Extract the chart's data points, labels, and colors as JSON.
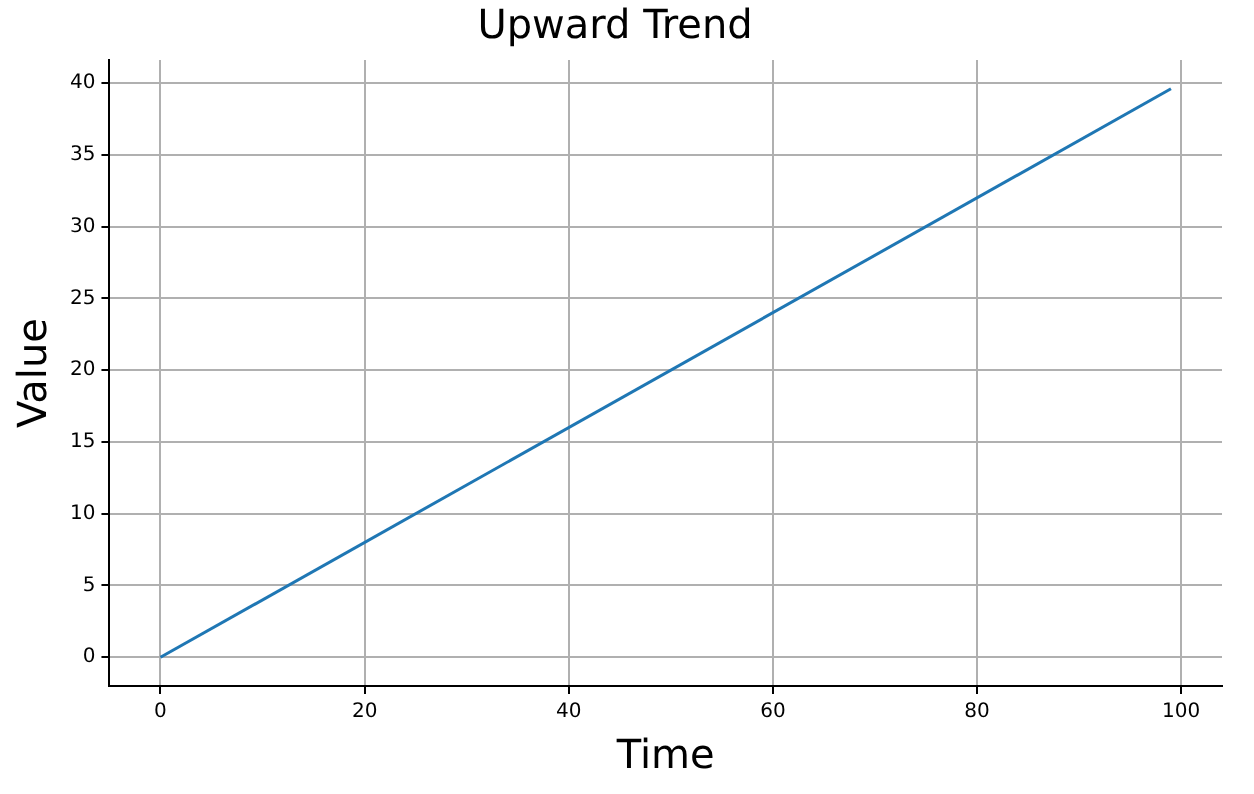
{
  "chart_data": {
    "type": "line",
    "title": "Upward Trend",
    "xlabel": "Time",
    "ylabel": "Value",
    "x": [
      0,
      99
    ],
    "series": [
      {
        "color": "#1f77b4",
        "values": [
          0,
          39.6
        ]
      }
    ],
    "xlim": [
      -5,
      104
    ],
    "xticks": [
      0,
      20,
      40,
      60,
      80,
      100
    ],
    "ylim": [
      -2,
      41.6
    ],
    "yticks": [
      0,
      5,
      10,
      15,
      20,
      25,
      30,
      35,
      40
    ],
    "grid": true,
    "legend": false,
    "marker": "none",
    "line_style": "solid"
  }
}
